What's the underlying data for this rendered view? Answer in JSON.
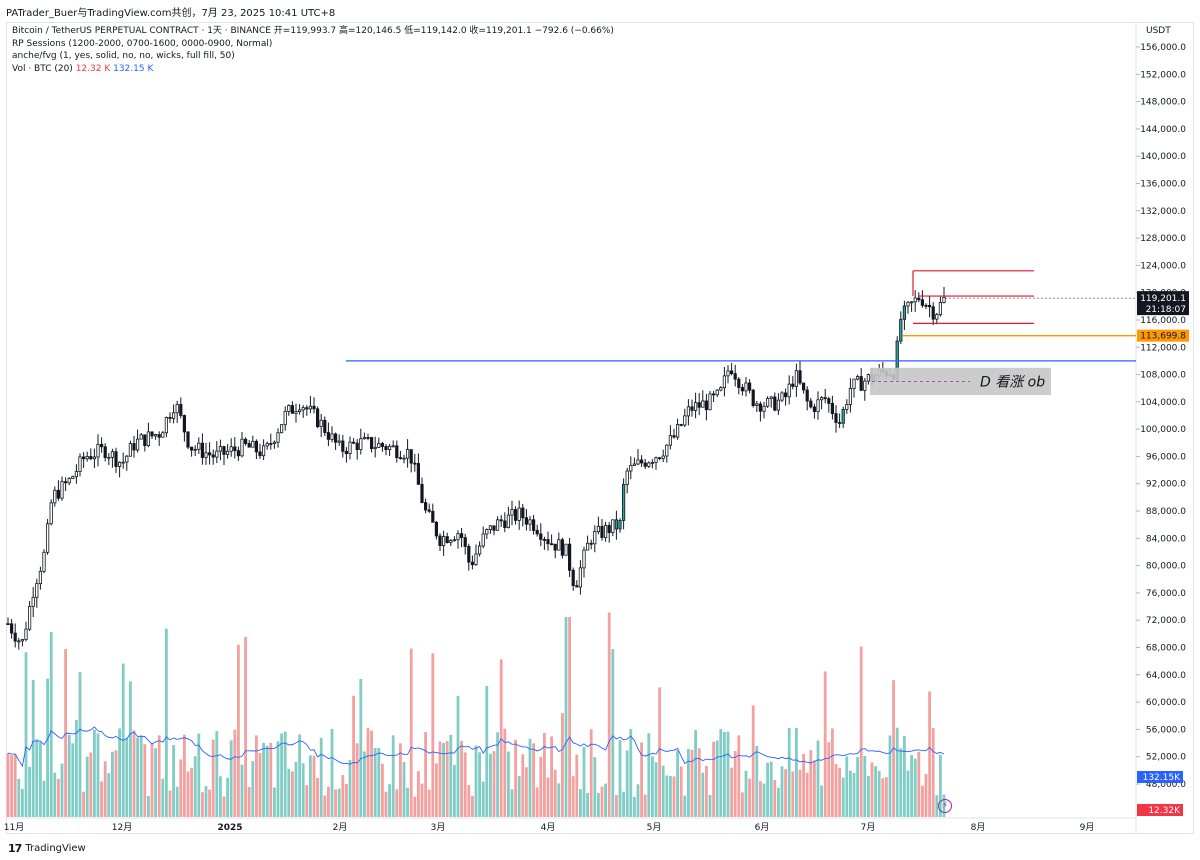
{
  "header": {
    "publish_line": "PATrader_Buer与TradingView.com共创，7月 23, 2025 10:41 UTC+8"
  },
  "legend": {
    "symbol_line": "Bitcoin / TetherUS PERPETUAL CONTRACT · 1天 · BINANCE  开=119,993.7  高=120,146.5  低=119,142.0  收=119,201.1  −792.6 (−0.66%)",
    "indicator_1": "RP Sessions (1200-2000, 0700-1600, 0000-0900, Normal)",
    "indicator_2": "anche/fvg (1, yes, solid, no, no, wicks, full fill, 50)",
    "vol_label": "Vol · BTC (20)",
    "vol_value": "12.32 K",
    "vol_ma_value": "132.15 K"
  },
  "price_scale": {
    "currency": "USDT",
    "ticks": [
      "156,000.0",
      "152,000.0",
      "148,000.0",
      "144,000.0",
      "140,000.0",
      "136,000.0",
      "132,000.0",
      "128,000.0",
      "124,000.0",
      "120,000.0",
      "116,000.0",
      "112,000.0",
      "108,000.0",
      "104,000.0",
      "100,000.0",
      "96,000.0",
      "92,000.0",
      "88,000.0",
      "84,000.0",
      "80,000.0",
      "76,000.0",
      "72,000.0",
      "68,000.0",
      "64,000.0",
      "60,000.0",
      "56,000.0",
      "52,000.0",
      "48,000.0"
    ],
    "last_price_label": "119,201.1",
    "countdown_label": "21:18:07",
    "orange_level_label": "113,699.8",
    "vol_ma_label": "132.15K",
    "vol_label": "12.32K"
  },
  "time_axis": [
    "11月",
    "12月",
    "2025",
    "2月",
    "3月",
    "4月",
    "5月",
    "6月",
    "7月",
    "8月",
    "9月"
  ],
  "annotations": {
    "ob_box_label": "D 看涨 ob"
  },
  "footer": {
    "brand": "TradingView",
    "logo_glyph": "17"
  },
  "colors": {
    "candle": "#131722",
    "vol_up": "#7fcdc4",
    "vol_down": "#f4a09e",
    "vol_ma": "#2962ff",
    "blue_line": "#2962ff",
    "orange_line": "#ff9800",
    "red_lines": "#e01a2a",
    "green_accent": "#26a69a",
    "ob_box": "#c6c6c6"
  },
  "chart_data": {
    "type": "candlestick",
    "interval": "1天",
    "y_axis_range": [
      46000,
      158000
    ],
    "monthly_path": [
      {
        "month": "11月",
        "close": 96000
      },
      {
        "month": "12月",
        "close": 94000
      },
      {
        "month": "2025",
        "close": 102000
      },
      {
        "month": "2月",
        "close": 84000
      },
      {
        "month": "3月",
        "close": 82000
      },
      {
        "month": "4月",
        "close": 94000
      },
      {
        "month": "5月",
        "close": 104000
      },
      {
        "month": "6月",
        "close": 107000
      },
      {
        "month": "7月",
        "close": 119000
      }
    ],
    "levels": {
      "blue_horizontal": 110000,
      "orange_horizontal": 113699.8,
      "red_high": 123200,
      "red_mid": 119500,
      "red_low": 115500,
      "ob_zone": [
        105000,
        109000
      ]
    },
    "last_bar": {
      "open": 119993.7,
      "high": 120146.5,
      "low": 119142.0,
      "close": 119201.1,
      "change": -792.6,
      "change_pct": -0.66
    },
    "volume_ma_last": 132.15,
    "volume_last": 12.32
  }
}
